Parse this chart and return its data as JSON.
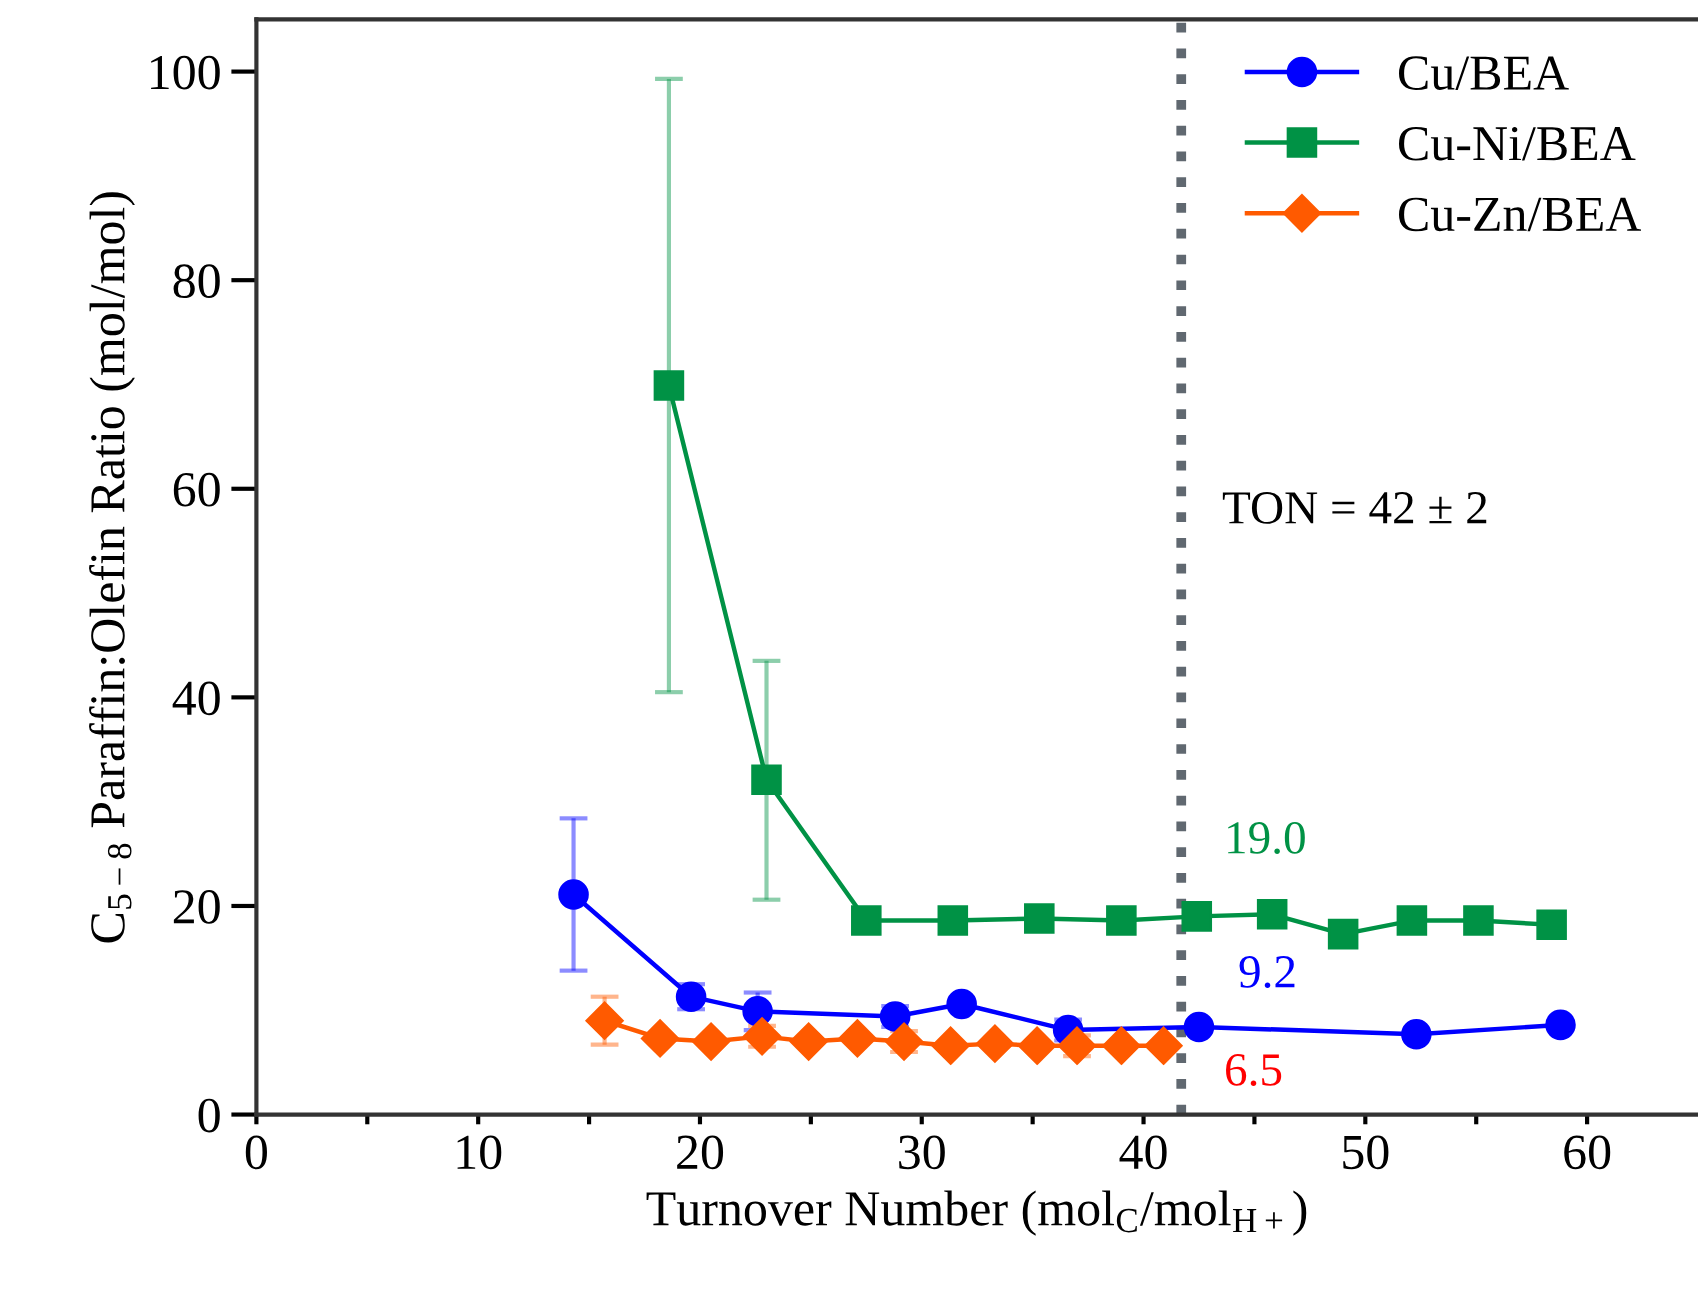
{
  "chart_data": {
    "type": "line",
    "xlabel": "Turnover Number (mol$_{C}$/mol$_{H+}$)",
    "ylabel": "C$_{5−8}$ Paraffin:Olefin Ratio (mol/mol)",
    "xlim": [
      0,
      65
    ],
    "ylim": [
      0,
      105
    ],
    "xticks": [
      0,
      {
        "value": 5,
        "label": null
      },
      10,
      {
        "value": 15,
        "label": null
      },
      20,
      {
        "value": 25,
        "label": null
      },
      30,
      {
        "value": 35,
        "label": null
      },
      40,
      {
        "value": 45,
        "label": null
      },
      50,
      {
        "value": 55,
        "label": null
      },
      60
    ],
    "yticks": [
      0,
      20,
      40,
      60,
      80,
      100
    ],
    "grid": false,
    "legend": "top right",
    "line_style": "solid",
    "series": [
      {
        "name": "Cu/BEA",
        "color": "#0000ff",
        "marker": "circle",
        "x": [
          14.3,
          19.6,
          22.6,
          28.8,
          31.8,
          36.6,
          42.5,
          52.3,
          58.8
        ],
        "values": [
          21.1,
          11.3,
          9.9,
          9.4,
          10.6,
          8.1,
          8.4,
          7.7,
          8.6
        ],
        "errors": [
          7.3,
          1.2,
          1.8,
          1.0,
          null,
          1.0,
          null,
          null,
          null
        ]
      },
      {
        "name": "Cu-Ni/BEA",
        "color": "#009245",
        "marker": "square",
        "x": [
          18.6,
          23.0,
          27.5,
          31.4,
          35.3,
          39.0,
          42.4,
          45.8,
          49.0,
          52.1,
          55.1,
          58.4
        ],
        "values": [
          69.9,
          32.1,
          18.6,
          18.6,
          18.8,
          18.6,
          19.0,
          19.2,
          17.3,
          18.6,
          18.6,
          18.2
        ],
        "errors": [
          [
            40.5,
            99.3
          ],
          [
            20.6,
            43.5
          ],
          null,
          null,
          null,
          null,
          null,
          null,
          null,
          null,
          null,
          null
        ]
      },
      {
        "name": "Cu-Zn/BEA",
        "color": "#ff5a00",
        "marker": "diamond",
        "x": [
          15.7,
          18.2,
          20.5,
          22.8,
          24.9,
          27.1,
          29.2,
          31.3,
          33.3,
          35.2,
          37.0,
          39.0,
          40.9
        ],
        "values": [
          9.0,
          7.3,
          7.0,
          7.5,
          7.0,
          7.3,
          7.0,
          6.6,
          6.8,
          6.6,
          6.6,
          6.6,
          6.6
        ],
        "errors": [
          2.3,
          null,
          null,
          1.0,
          null,
          null,
          1.0,
          null,
          null,
          null,
          1.0,
          null,
          null
        ]
      }
    ],
    "ref_lines": [
      {
        "axis": "x",
        "value": 41.7,
        "color": "#606870",
        "line_style": "dotted"
      }
    ],
    "annotations": [
      "TON = 42 ± 2",
      "19.0",
      "9.2",
      "6.5"
    ]
  }
}
